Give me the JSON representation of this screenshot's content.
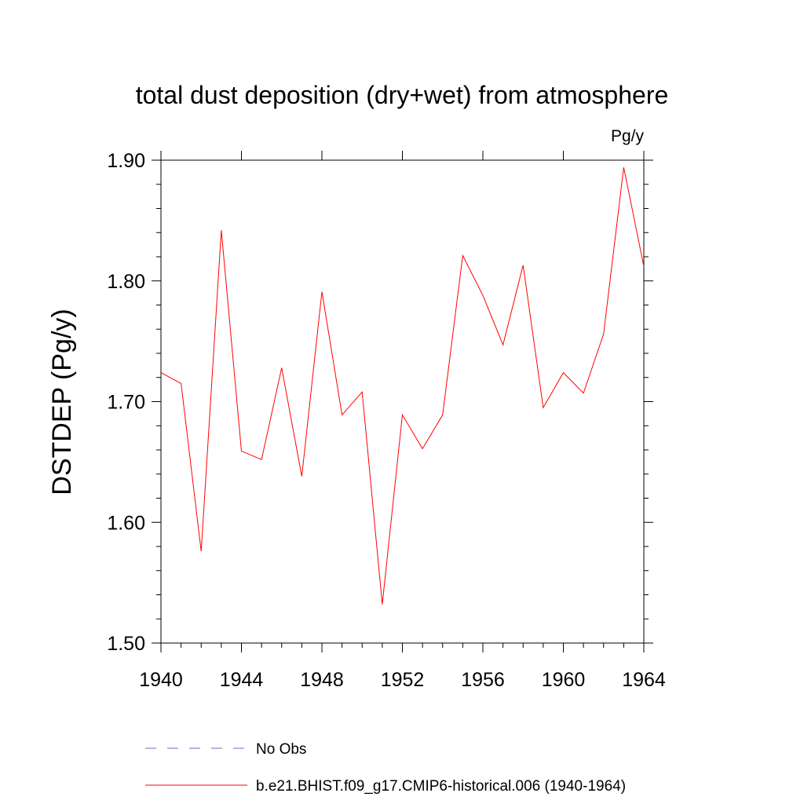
{
  "chart_data": {
    "type": "line",
    "title": "total dust deposition (dry+wet) from atmosphere",
    "units_label": "Pg/y",
    "ylabel": "DSTDEP  (Pg/y)",
    "xlabel": "",
    "xlim": [
      1940,
      1964
    ],
    "ylim": [
      1.5,
      1.9
    ],
    "x_ticks": [
      1940,
      1944,
      1948,
      1952,
      1956,
      1960,
      1964
    ],
    "x_tick_labels": [
      "1940",
      "1944",
      "1948",
      "1952",
      "1956",
      "1960",
      "1964"
    ],
    "y_ticks": [
      1.5,
      1.6,
      1.7,
      1.8,
      1.9
    ],
    "y_tick_labels": [
      "1.50",
      "1.60",
      "1.70",
      "1.80",
      "1.90"
    ],
    "grid": false,
    "legend_position": "bottom",
    "series": [
      {
        "name": "b.e21.BHIST.f09_g17.CMIP6-historical.006 (1940-1964)",
        "color": "#ff0000",
        "style": "solid",
        "x": [
          1940,
          1941,
          1942,
          1943,
          1944,
          1945,
          1946,
          1947,
          1948,
          1949,
          1950,
          1951,
          1952,
          1953,
          1954,
          1955,
          1956,
          1957,
          1958,
          1959,
          1960,
          1961,
          1962,
          1963,
          1964
        ],
        "values": [
          1.724,
          1.715,
          1.576,
          1.842,
          1.659,
          1.652,
          1.728,
          1.638,
          1.791,
          1.689,
          1.708,
          1.532,
          1.689,
          1.661,
          1.689,
          1.821,
          1.788,
          1.747,
          1.813,
          1.695,
          1.724,
          1.707,
          1.756,
          1.894,
          1.812
        ]
      },
      {
        "name": "No Obs",
        "color": "#6a6acd",
        "style": "dashed",
        "x": [],
        "values": []
      }
    ]
  }
}
